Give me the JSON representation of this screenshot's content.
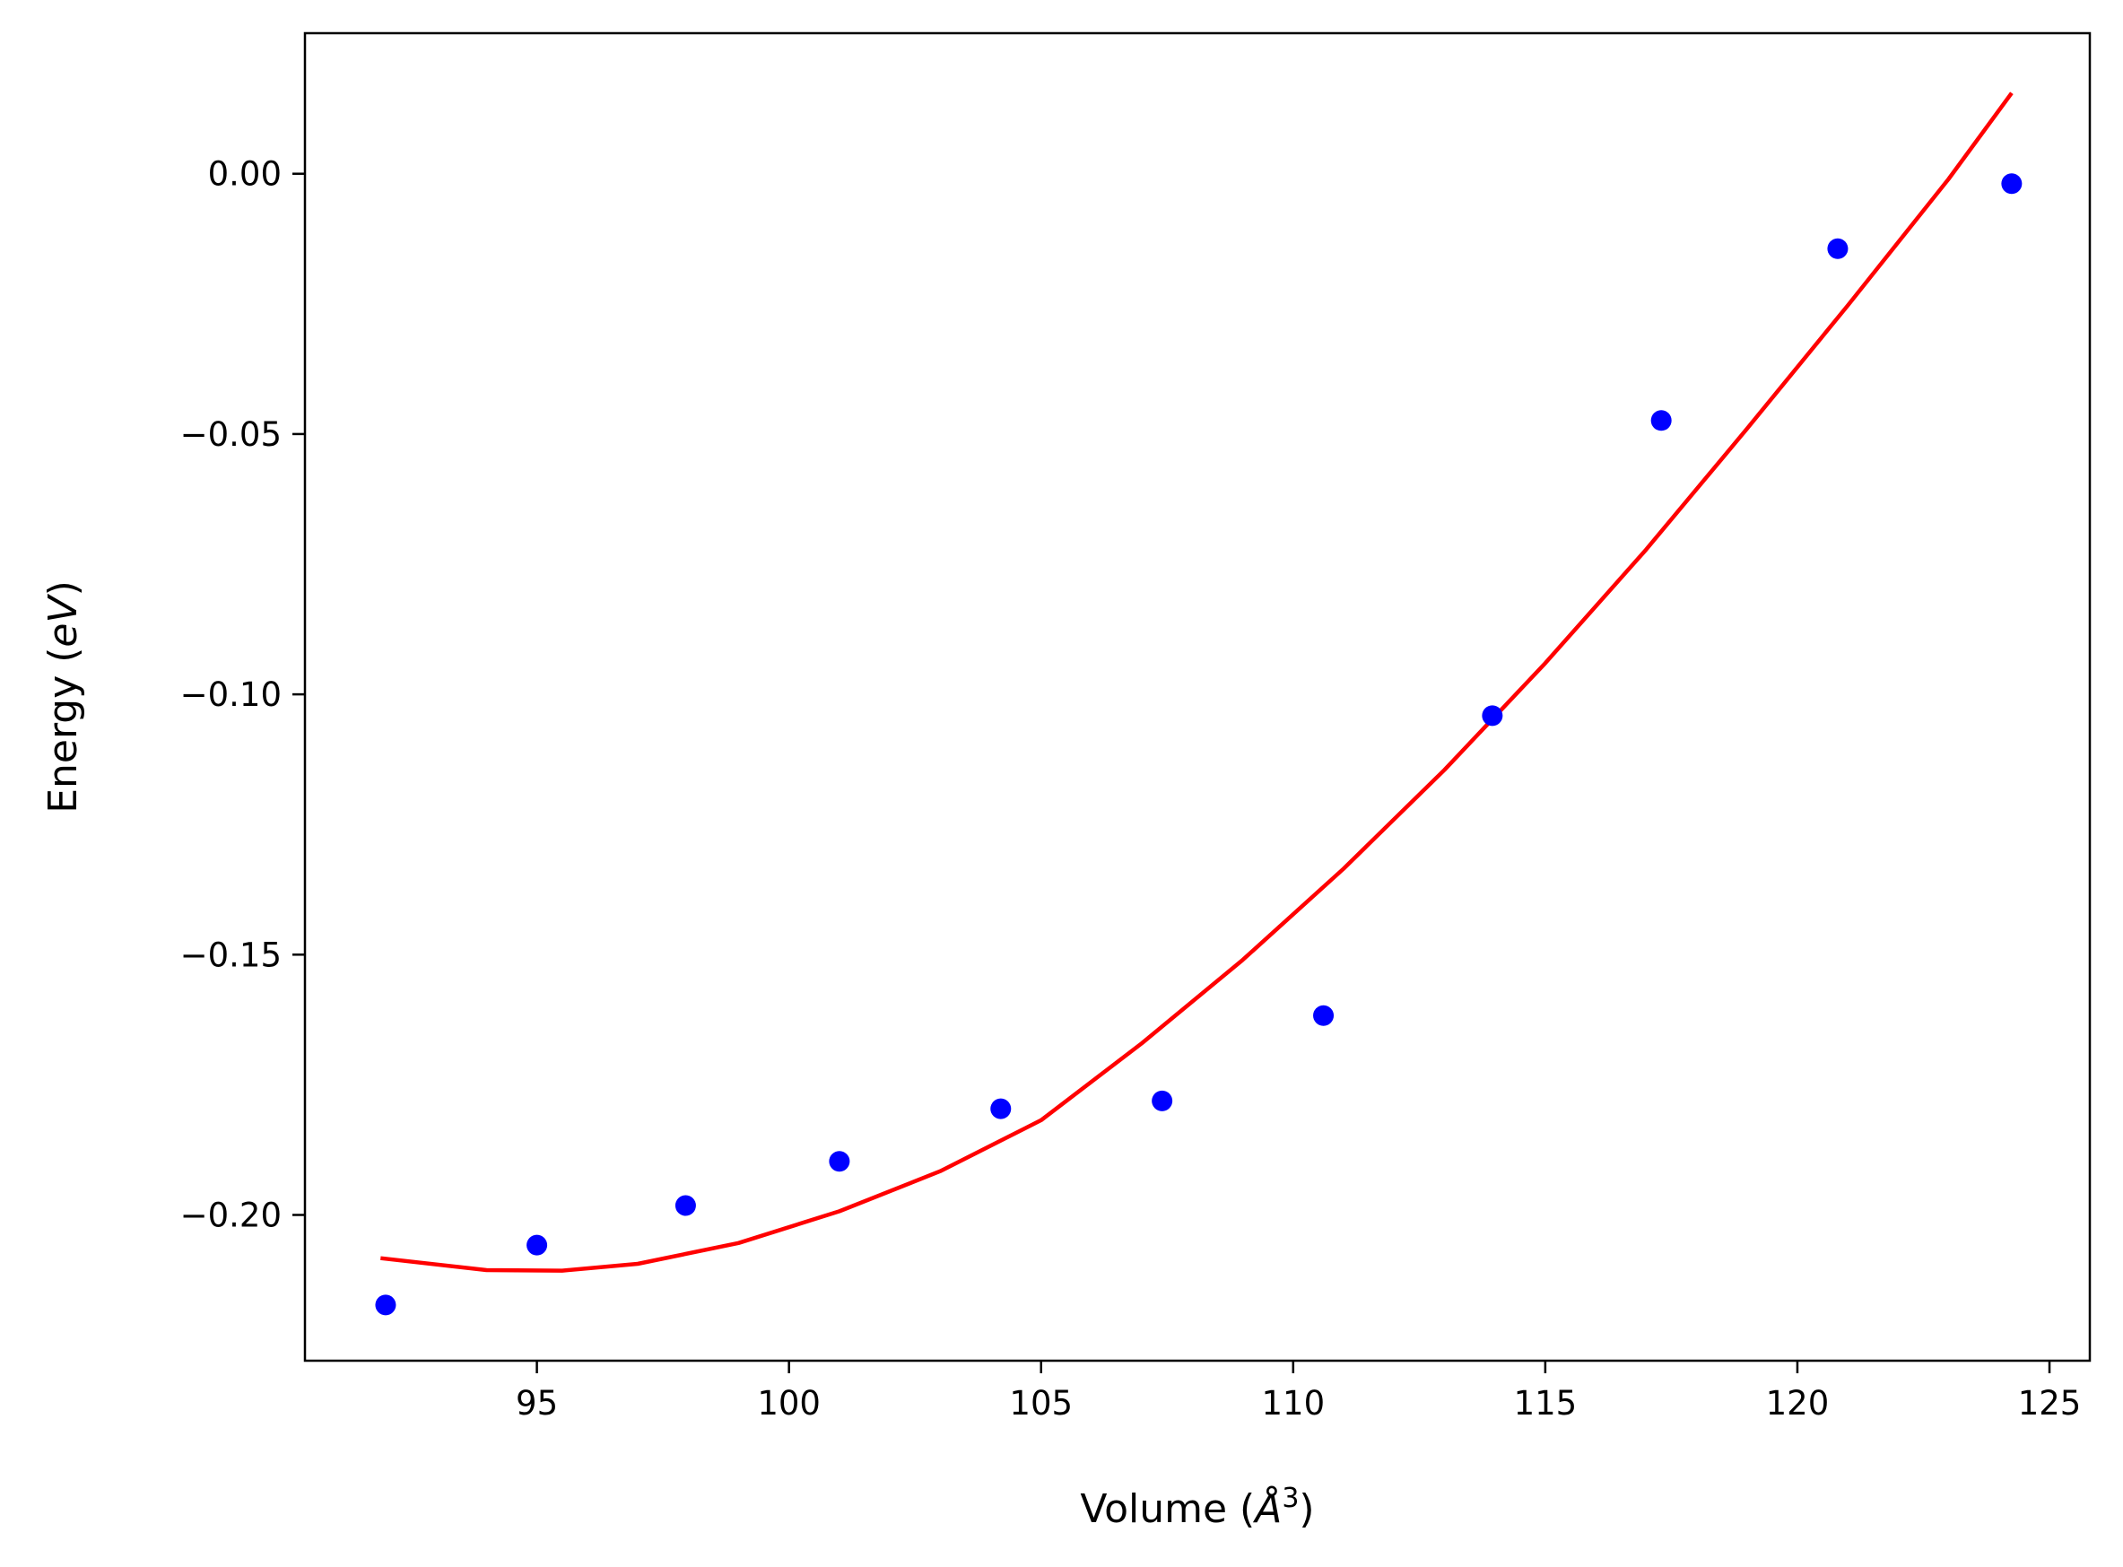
{
  "chart_data": {
    "type": "scatter",
    "title": "",
    "xlabel": {
      "prefix": "Volume (",
      "symbol": "Å",
      "sup": "3",
      "suffix": ")"
    },
    "ylabel": {
      "prefix": "Energy (",
      "symbol": "eV",
      "suffix": ")"
    },
    "xlim": [
      90.4,
      125.8
    ],
    "ylim": [
      -0.228,
      0.027
    ],
    "x_ticks": [
      {
        "value": 95,
        "label": "95"
      },
      {
        "value": 100,
        "label": "100"
      },
      {
        "value": 105,
        "label": "105"
      },
      {
        "value": 110,
        "label": "110"
      },
      {
        "value": 115,
        "label": "115"
      },
      {
        "value": 120,
        "label": "120"
      },
      {
        "value": 125,
        "label": "125"
      }
    ],
    "y_ticks": [
      {
        "value": 0.0,
        "label": "0.00"
      },
      {
        "value": -0.05,
        "label": "−0.05"
      },
      {
        "value": -0.1,
        "label": "−0.10"
      },
      {
        "value": -0.15,
        "label": "−0.15"
      },
      {
        "value": -0.2,
        "label": "−0.20"
      }
    ],
    "grid": false,
    "legend": "none",
    "series": [
      {
        "kind": "scatter",
        "color": "#0000ff",
        "points": [
          {
            "x": 92.0,
            "y": -0.2173
          },
          {
            "x": 95.0,
            "y": -0.2058
          },
          {
            "x": 97.95,
            "y": -0.1982
          },
          {
            "x": 101.0,
            "y": -0.1897
          },
          {
            "x": 104.2,
            "y": -0.1796
          },
          {
            "x": 107.4,
            "y": -0.1781
          },
          {
            "x": 110.6,
            "y": -0.1617
          },
          {
            "x": 113.95,
            "y": -0.1041
          },
          {
            "x": 117.3,
            "y": -0.0474
          },
          {
            "x": 120.8,
            "y": -0.0144
          },
          {
            "x": 124.25,
            "y": -0.0019
          }
        ]
      },
      {
        "kind": "line",
        "color": "#ff0000",
        "points": [
          {
            "x": 91.9,
            "y": -0.2083
          },
          {
            "x": 94.0,
            "y": -0.2106
          },
          {
            "x": 95.5,
            "y": -0.2107
          },
          {
            "x": 97.0,
            "y": -0.2094
          },
          {
            "x": 99.0,
            "y": -0.2054
          },
          {
            "x": 101.0,
            "y": -0.1993
          },
          {
            "x": 103.0,
            "y": -0.1916
          },
          {
            "x": 105.0,
            "y": -0.1818
          },
          {
            "x": 107.0,
            "y": -0.167
          },
          {
            "x": 109.0,
            "y": -0.151
          },
          {
            "x": 111.0,
            "y": -0.1335
          },
          {
            "x": 113.0,
            "y": -0.1145
          },
          {
            "x": 115.0,
            "y": -0.094
          },
          {
            "x": 117.0,
            "y": -0.0722
          },
          {
            "x": 119.0,
            "y": -0.049
          },
          {
            "x": 121.0,
            "y": -0.0253
          },
          {
            "x": 123.0,
            "y": -0.001
          },
          {
            "x": 124.25,
            "y": 0.0155
          }
        ]
      }
    ]
  }
}
